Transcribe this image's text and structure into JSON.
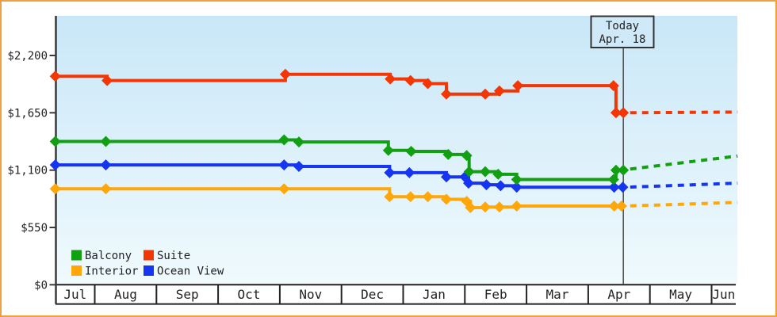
{
  "style": {
    "frame_border": "#eda23f",
    "plot_top": "#c9e7f8",
    "plot_bottom": "#f0fafd",
    "axis_color": "#3a3a3a",
    "text_color": "#222222",
    "today_line_color": "#555555",
    "today_box_fill": "#cfe9f8",
    "today_box_border": "#333333"
  },
  "chart_data": {
    "type": "line",
    "subtype": "step-after-price-history",
    "title": "",
    "xlabel": "",
    "ylabel": "",
    "grid": false,
    "y_axis": {
      "ticks": [
        {
          "label": "$0",
          "value": 0
        },
        {
          "label": "$550",
          "value": 550
        },
        {
          "label": "$1,100",
          "value": 1100
        },
        {
          "label": "$1,650",
          "value": 1650
        },
        {
          "label": "$2,200",
          "value": 2200
        }
      ],
      "range": [
        0,
        2580
      ]
    },
    "x_axis": {
      "months": [
        "Jul",
        "Aug",
        "Sep",
        "Oct",
        "Nov",
        "Dec",
        "Jan",
        "Feb",
        "Mar",
        "Apr",
        "May",
        "Jun"
      ],
      "range_month_index": [
        0.36,
        11.42
      ]
    },
    "today": {
      "line1": "Today",
      "line2": "Apr. 18",
      "month_index": 9.57
    },
    "series": [
      {
        "key": "interior",
        "name": "Interior",
        "color": "#ffa608",
        "points": [
          [
            0.36,
            920
          ],
          [
            1.18,
            920
          ],
          [
            4.07,
            920
          ],
          [
            5.78,
            845
          ],
          [
            6.12,
            845
          ],
          [
            6.4,
            845
          ],
          [
            6.7,
            820
          ],
          [
            7.03,
            800
          ],
          [
            7.09,
            740
          ],
          [
            7.33,
            745
          ],
          [
            7.56,
            745
          ],
          [
            7.84,
            755
          ],
          [
            9.42,
            755
          ],
          [
            9.54,
            755
          ]
        ],
        "forecast": [
          [
            9.68,
            757
          ],
          [
            11.42,
            790
          ]
        ]
      },
      {
        "key": "ocean-view",
        "name": "Ocean View",
        "color": "#1535f0",
        "points": [
          [
            0.36,
            1150
          ],
          [
            1.18,
            1150
          ],
          [
            4.07,
            1150
          ],
          [
            4.31,
            1135
          ],
          [
            5.78,
            1075
          ],
          [
            6.1,
            1075
          ],
          [
            6.7,
            1035
          ],
          [
            7.0,
            1035
          ],
          [
            7.06,
            975
          ],
          [
            7.35,
            960
          ],
          [
            7.58,
            950
          ],
          [
            7.84,
            935
          ],
          [
            9.42,
            935
          ],
          [
            9.56,
            935
          ]
        ],
        "forecast": [
          [
            9.68,
            937
          ],
          [
            11.42,
            975
          ]
        ]
      },
      {
        "key": "balcony",
        "name": "Balcony",
        "color": "#12a012",
        "points": [
          [
            0.36,
            1375
          ],
          [
            1.18,
            1375
          ],
          [
            4.07,
            1390
          ],
          [
            4.31,
            1370
          ],
          [
            5.76,
            1290
          ],
          [
            6.13,
            1280
          ],
          [
            6.73,
            1250
          ],
          [
            7.03,
            1240
          ],
          [
            7.07,
            1085
          ],
          [
            7.33,
            1085
          ],
          [
            7.54,
            1060
          ],
          [
            7.84,
            1010
          ],
          [
            9.41,
            1010
          ],
          [
            9.45,
            1100
          ],
          [
            9.57,
            1100
          ]
        ],
        "forecast": [
          [
            9.68,
            1110
          ],
          [
            11.42,
            1235
          ]
        ]
      },
      {
        "key": "suite",
        "name": "Suite",
        "color": "#f23705",
        "points": [
          [
            0.36,
            2000
          ],
          [
            1.2,
            1960
          ],
          [
            4.09,
            2020
          ],
          [
            5.79,
            1975
          ],
          [
            6.12,
            1960
          ],
          [
            6.4,
            1930
          ],
          [
            6.7,
            1830
          ],
          [
            7.33,
            1830
          ],
          [
            7.56,
            1860
          ],
          [
            7.86,
            1910
          ],
          [
            9.41,
            1910
          ],
          [
            9.45,
            1650
          ],
          [
            9.57,
            1650
          ]
        ],
        "forecast": [
          [
            9.68,
            1650
          ],
          [
            11.42,
            1657
          ]
        ]
      }
    ],
    "legend": {
      "position": "bottom-left-inside-plot",
      "rows": [
        [
          {
            "name": "Balcony",
            "color": "#12a012"
          },
          {
            "name": "Suite",
            "color": "#f23705"
          }
        ],
        [
          {
            "name": "Interior",
            "color": "#ffa608"
          },
          {
            "name": "Ocean View",
            "color": "#1535f0"
          }
        ]
      ]
    }
  }
}
